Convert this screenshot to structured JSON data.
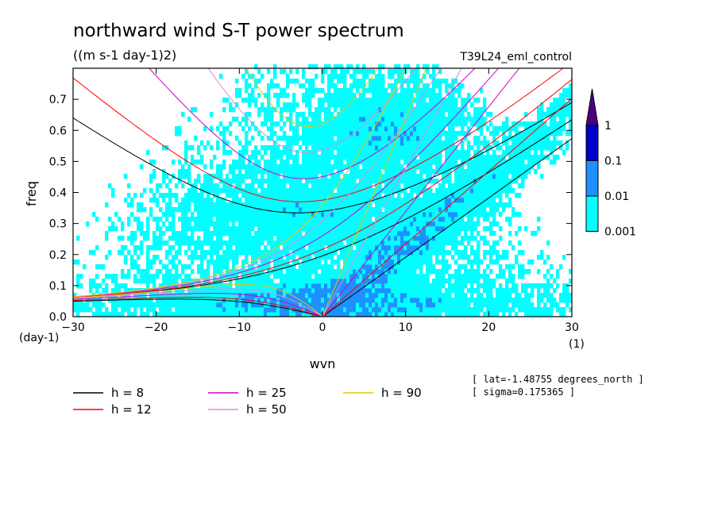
{
  "chart_data": {
    "type": "heatmap",
    "title": "northward wind S-T power spectrum",
    "subtitle": "((m s-1 day-1)2)",
    "run_label": "T39L24_eml_control",
    "xlabel": "wvn",
    "ylabel": "freq",
    "x_unit": "(1)",
    "y_unit": "(day-1)",
    "xlim": [
      -30,
      30
    ],
    "ylim": [
      0,
      0.8
    ],
    "x_ticks": [
      -30,
      -20,
      -10,
      0,
      10,
      20,
      30
    ],
    "x_tick_labels": [
      "−30",
      "−20",
      "−10",
      "0",
      "10",
      "20",
      "30"
    ],
    "y_ticks": [
      0,
      0.1,
      0.2,
      0.3,
      0.4,
      0.5,
      0.6,
      0.7
    ],
    "y_tick_labels": [
      "0.0",
      "0.1",
      "0.2",
      "0.3",
      "0.4",
      "0.5",
      "0.6",
      "0.7"
    ],
    "colorbar": {
      "levels": [
        0.001,
        0.01,
        0.1,
        1
      ],
      "labels": [
        "0.001",
        "0.01",
        "0.1",
        "1"
      ],
      "colors": [
        "#00ffff",
        "#1e90ff",
        "#0000cd",
        "#4b0082"
      ]
    },
    "dispersion_curves": [
      {
        "h": 8,
        "color": "#000000"
      },
      {
        "h": 12,
        "color": "#ff0000"
      },
      {
        "h": 25,
        "color": "#cc00cc"
      },
      {
        "h": 50,
        "color": "#dd88dd"
      },
      {
        "h": 90,
        "color": "#e6c800"
      }
    ],
    "legend": [
      {
        "label": "h =  8",
        "color": "#000000"
      },
      {
        "label": "h = 12",
        "color": "#ff0000"
      },
      {
        "label": "h = 25",
        "color": "#cc00cc"
      },
      {
        "label": "h = 50",
        "color": "#dd88dd"
      },
      {
        "label": "h = 90",
        "color": "#e6c800"
      }
    ],
    "info_lines": [
      "[ lat=-1.48755 degrees_north ]",
      "[ sigma=0.175365 ]"
    ]
  }
}
